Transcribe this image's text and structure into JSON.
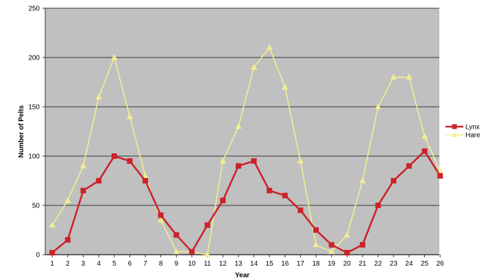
{
  "chart_data": {
    "type": "line",
    "title": "",
    "xlabel": "Year",
    "ylabel": "Number of Pelts",
    "ylim": [
      0,
      250
    ],
    "yticks": [
      0,
      50,
      100,
      150,
      200,
      250
    ],
    "x": [
      1,
      2,
      3,
      4,
      5,
      6,
      7,
      8,
      9,
      10,
      11,
      12,
      13,
      14,
      15,
      16,
      17,
      18,
      19,
      20,
      21,
      22,
      23,
      24,
      25,
      26
    ],
    "grid": true,
    "legend_position": "right",
    "plot_background": "#c0c0c0",
    "series": [
      {
        "name": "Lynx",
        "color": "#cc2229",
        "marker": "square",
        "values": [
          2,
          15,
          65,
          75,
          100,
          95,
          75,
          40,
          20,
          3,
          30,
          55,
          90,
          95,
          65,
          60,
          45,
          25,
          10,
          2,
          10,
          50,
          75,
          90,
          105,
          80
        ]
      },
      {
        "name": "Hare",
        "color": "#f2ef8f",
        "marker": "triangle",
        "values": [
          30,
          55,
          90,
          160,
          200,
          140,
          80,
          35,
          3,
          3,
          0,
          95,
          130,
          190,
          210,
          170,
          95,
          10,
          3,
          20,
          75,
          150,
          180,
          180,
          120,
          85
        ]
      }
    ]
  }
}
